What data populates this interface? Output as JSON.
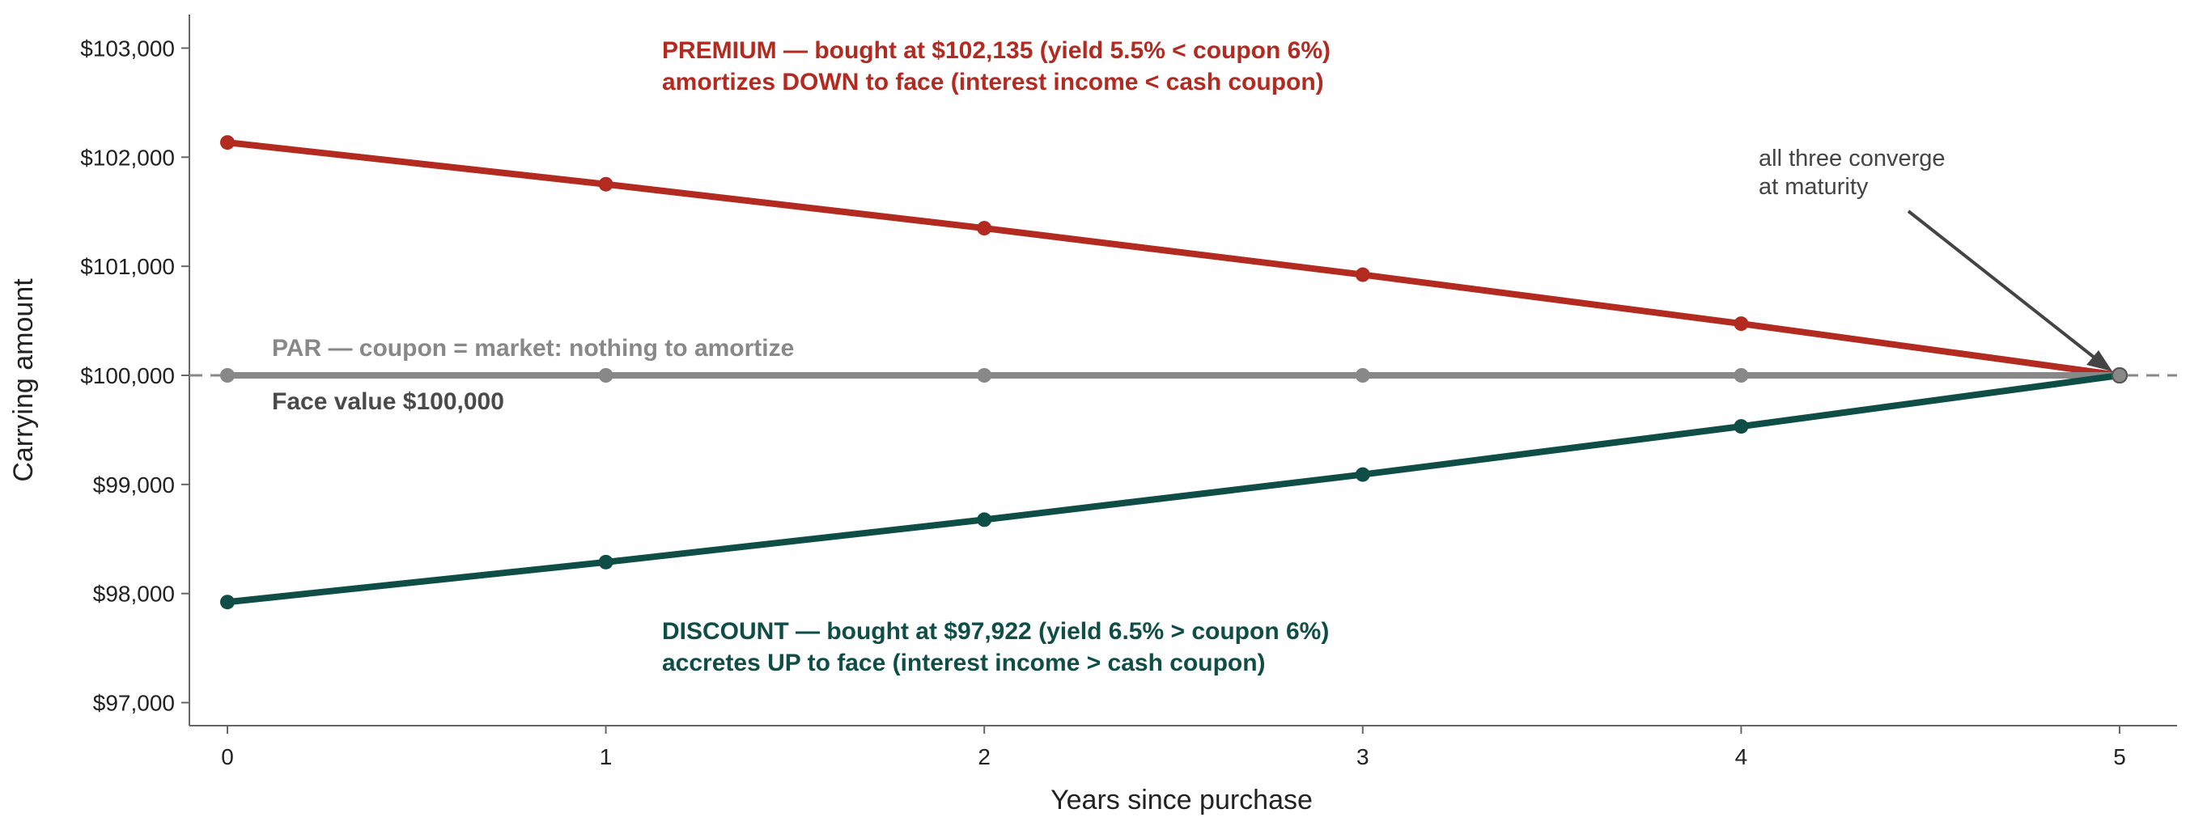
{
  "chart_data": {
    "type": "line",
    "xlabel": "Years since purchase",
    "ylabel": "Carrying amount",
    "x": [
      0,
      1,
      2,
      3,
      4,
      5
    ],
    "xlim": [
      -0.1,
      5.15
    ],
    "ylim": [
      96800,
      103300
    ],
    "y_ticks": [
      97000,
      98000,
      99000,
      100000,
      101000,
      102000,
      103000
    ],
    "y_tick_labels": [
      "$97,000",
      "$98,000",
      "$99,000",
      "$100,000",
      "$101,000",
      "$102,000",
      "$103,000"
    ],
    "x_tick_labels": [
      "0",
      "1",
      "2",
      "3",
      "4",
      "5"
    ],
    "grid": false,
    "reference_line": {
      "value": 100000,
      "style": "dashed",
      "color": "#888888"
    },
    "series": [
      {
        "key": "premium",
        "color": "#b22a20",
        "values": [
          102135,
          101752,
          101349,
          100923,
          100474,
          100000
        ]
      },
      {
        "key": "par",
        "color": "#888888",
        "values": [
          100000,
          100000,
          100000,
          100000,
          100000,
          100000
        ]
      },
      {
        "key": "discount",
        "color": "#0f4d47",
        "values": [
          97922,
          98288,
          98677,
          99091,
          99532,
          100000
        ]
      }
    ],
    "annotations": {
      "premium_line1": "PREMIUM — bought at $102,135 (yield 5.5% < coupon 6%)",
      "premium_line2": "amortizes DOWN to face (interest income < cash coupon)",
      "par_label": "PAR — coupon = market: nothing to amortize",
      "face_label": "Face value $100,000",
      "discount_line1": "DISCOUNT — bought at $97,922 (yield 6.5% > coupon 6%)",
      "discount_line2": "accretes UP to face (interest income > cash coupon)",
      "converge_line1": "all three converge",
      "converge_line2": "at maturity"
    },
    "colors": {
      "premium": "#b22a20",
      "par": "#888888",
      "discount": "#0f4d47",
      "face_text": "#4a4a4a",
      "converge_text": "#444444"
    }
  }
}
